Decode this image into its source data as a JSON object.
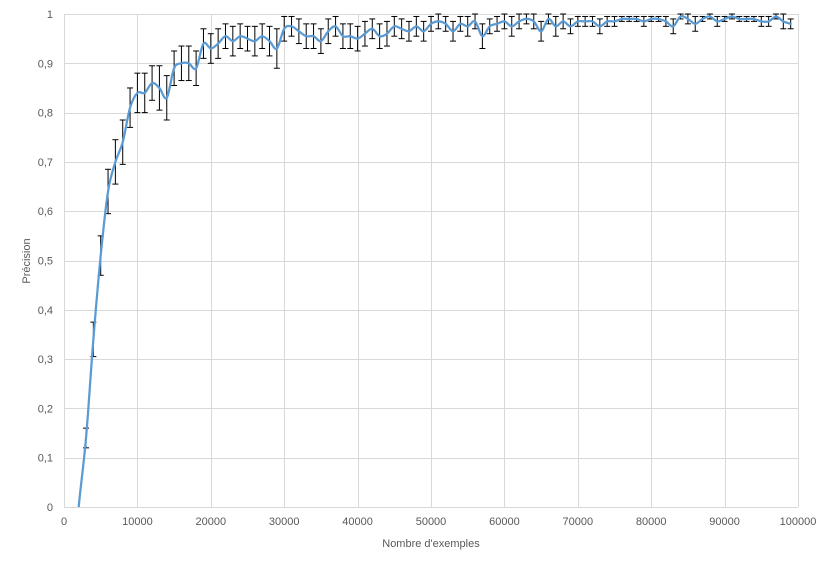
{
  "chart_data": {
    "type": "line",
    "title": "",
    "xlabel": "Nombre d'exemples",
    "ylabel": "Précision",
    "xlim": [
      0,
      100000
    ],
    "ylim": [
      0,
      1
    ],
    "grid": true,
    "legend": "none",
    "x_ticks": [
      0,
      10000,
      20000,
      30000,
      40000,
      50000,
      60000,
      70000,
      80000,
      90000,
      100000
    ],
    "x_tick_labels": [
      "0",
      "10000",
      "20000",
      "30000",
      "40000",
      "50000",
      "60000",
      "70000",
      "80000",
      "90000",
      "100000"
    ],
    "y_ticks": [
      0,
      0.1,
      0.2,
      0.3,
      0.4,
      0.5,
      0.6,
      0.7,
      0.8,
      0.9,
      1
    ],
    "y_tick_labels": [
      "0",
      "0,1",
      "0,2",
      "0,3",
      "0,4",
      "0,5",
      "0,6",
      "0,7",
      "0,8",
      "0,9",
      "1"
    ],
    "line_color": "#5b9bd5",
    "error_bar_color": "#000000",
    "series": [
      {
        "x": [
          1000,
          2000,
          3000,
          4000,
          5000,
          6000,
          7000,
          8000,
          9000,
          10000,
          11000,
          12000,
          13000,
          14000,
          15000,
          16000,
          17000,
          18000,
          19000,
          20000,
          21000,
          22000,
          23000,
          24000,
          25000,
          26000,
          27000,
          28000,
          29000,
          30000,
          31000,
          32000,
          33000,
          34000,
          35000,
          36000,
          37000,
          38000,
          39000,
          40000,
          41000,
          42000,
          43000,
          44000,
          45000,
          46000,
          47000,
          48000,
          49000,
          50000,
          51000,
          52000,
          53000,
          54000,
          55000,
          56000,
          57000,
          58000,
          59000,
          60000,
          61000,
          62000,
          63000,
          64000,
          65000,
          66000,
          67000,
          68000,
          69000,
          70000,
          71000,
          72000,
          73000,
          74000,
          75000,
          76000,
          77000,
          78000,
          79000,
          80000,
          81000,
          82000,
          83000,
          84000,
          85000,
          86000,
          87000,
          88000,
          89000,
          90000,
          91000,
          92000,
          93000,
          94000,
          95000,
          96000,
          97000,
          98000,
          99000
        ],
        "values": [
          -0.17,
          0.0,
          0.14,
          0.34,
          0.51,
          0.64,
          0.7,
          0.74,
          0.81,
          0.84,
          0.84,
          0.86,
          0.85,
          0.83,
          0.89,
          0.9,
          0.9,
          0.89,
          0.94,
          0.93,
          0.94,
          0.955,
          0.945,
          0.955,
          0.95,
          0.945,
          0.955,
          0.945,
          0.93,
          0.97,
          0.975,
          0.965,
          0.955,
          0.955,
          0.945,
          0.965,
          0.975,
          0.955,
          0.955,
          0.95,
          0.96,
          0.97,
          0.955,
          0.96,
          0.975,
          0.97,
          0.965,
          0.975,
          0.965,
          0.98,
          0.985,
          0.98,
          0.965,
          0.98,
          0.975,
          0.985,
          0.955,
          0.975,
          0.98,
          0.985,
          0.975,
          0.985,
          0.99,
          0.985,
          0.965,
          0.99,
          0.975,
          0.985,
          0.975,
          0.985,
          0.985,
          0.985,
          0.975,
          0.985,
          0.985,
          0.99,
          0.99,
          0.99,
          0.985,
          0.99,
          0.99,
          0.985,
          0.975,
          0.995,
          0.99,
          0.98,
          0.99,
          0.995,
          0.985,
          0.99,
          0.995,
          0.99,
          0.99,
          0.99,
          0.985,
          0.985,
          0.995,
          0.985,
          0.98
        ],
        "error": [
          0,
          0,
          0.02,
          0.035,
          0.04,
          0.045,
          0.045,
          0.045,
          0.04,
          0.04,
          0.04,
          0.035,
          0.045,
          0.045,
          0.035,
          0.035,
          0.035,
          0.035,
          0.03,
          0.03,
          0.03,
          0.025,
          0.03,
          0.025,
          0.025,
          0.03,
          0.025,
          0.03,
          0.04,
          0.025,
          0.02,
          0.025,
          0.025,
          0.025,
          0.025,
          0.025,
          0.02,
          0.025,
          0.025,
          0.025,
          0.025,
          0.02,
          0.025,
          0.025,
          0.02,
          0.02,
          0.02,
          0.02,
          0.02,
          0.015,
          0.015,
          0.015,
          0.02,
          0.015,
          0.02,
          0.015,
          0.025,
          0.015,
          0.015,
          0.015,
          0.02,
          0.015,
          0.01,
          0.015,
          0.02,
          0.01,
          0.02,
          0.015,
          0.015,
          0.01,
          0.01,
          0.01,
          0.015,
          0.01,
          0.01,
          0.005,
          0.005,
          0.005,
          0.01,
          0.005,
          0.005,
          0.01,
          0.015,
          0.005,
          0.01,
          0.015,
          0.005,
          0.005,
          0.01,
          0.005,
          0.005,
          0.005,
          0.005,
          0.005,
          0.01,
          0.01,
          0.005,
          0.015,
          0.01
        ]
      }
    ]
  }
}
